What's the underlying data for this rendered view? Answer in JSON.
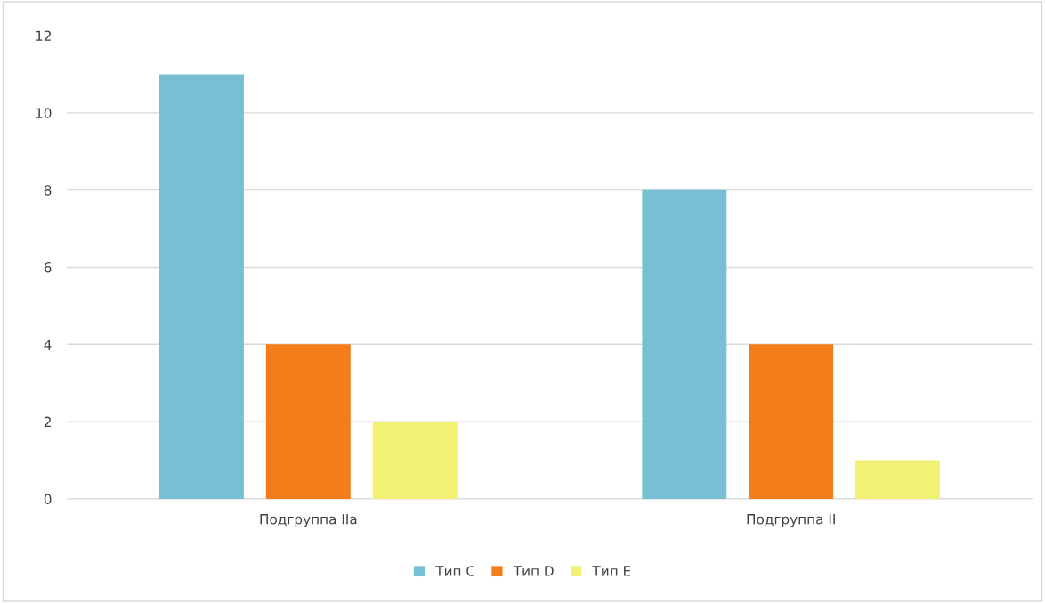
{
  "chart_data": {
    "type": "bar",
    "categories": [
      "Подгруппа IIa",
      "Подгруппа II"
    ],
    "series": [
      {
        "name": "Тип C",
        "color": "#77c0d4",
        "values": [
          11,
          8
        ]
      },
      {
        "name": "Тип D",
        "color": "#f47c1b",
        "values": [
          4,
          4
        ]
      },
      {
        "name": "Тип E",
        "color": "#f1f174",
        "values": [
          2,
          1
        ]
      }
    ],
    "ylim": [
      0,
      12
    ],
    "yticks": [
      0,
      2,
      4,
      6,
      8,
      10,
      12
    ],
    "grid": "y",
    "legend": "bottom"
  }
}
